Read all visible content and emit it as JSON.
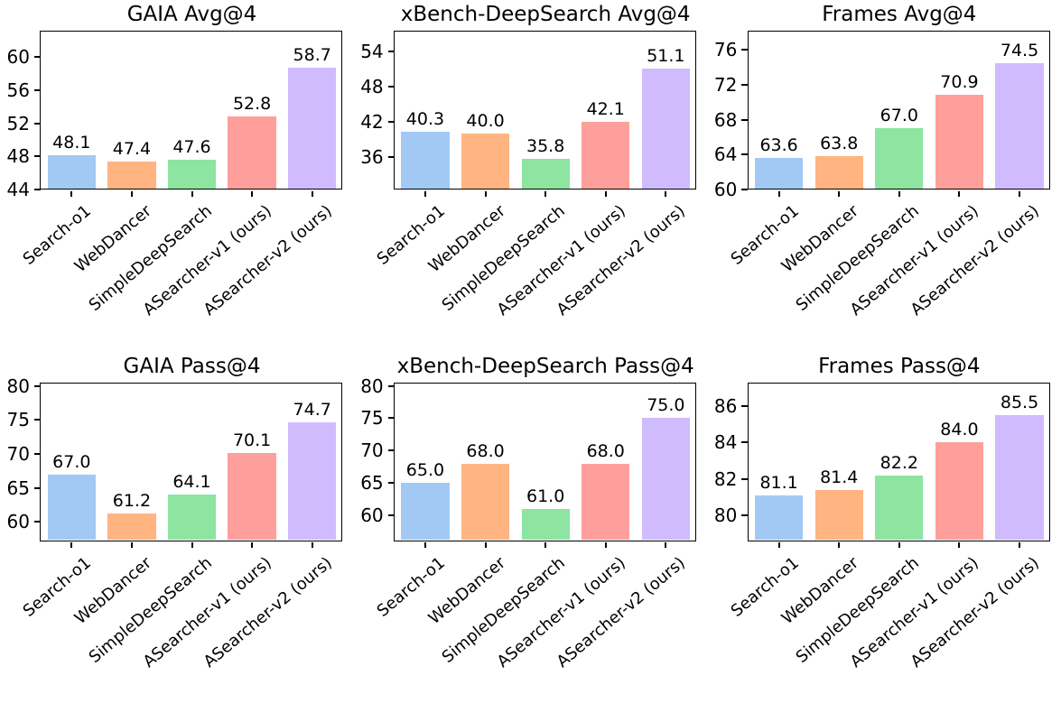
{
  "figure": {
    "background": "#ffffff",
    "axis_color": "#000000",
    "text_color": "#000000",
    "palette": [
      "#a1c9f4",
      "#ffb482",
      "#8de5a1",
      "#ff9f9b",
      "#d0bbff"
    ],
    "grid_layout": {
      "rows": 2,
      "cols": 3
    }
  },
  "chart_data": [
    {
      "type": "bar",
      "title": "GAIA Avg@4",
      "categories": [
        "Search-o1",
        "WebDancer",
        "SimpleDeepSearch",
        "ASearcher-v1 (ours)",
        "ASearcher-v2 (ours)"
      ],
      "values": [
        48.1,
        47.4,
        47.6,
        52.8,
        58.7
      ],
      "bar_labels": [
        "48.1",
        "47.4",
        "47.6",
        "52.8",
        "58.7"
      ],
      "yticks": [
        44,
        48,
        52,
        56,
        60
      ],
      "ylim": [
        44,
        63
      ],
      "xlabel": "",
      "ylabel": "",
      "grid": false,
      "legend": null
    },
    {
      "type": "bar",
      "title": "xBench-DeepSearch Avg@4",
      "categories": [
        "Search-o1",
        "WebDancer",
        "SimpleDeepSearch",
        "ASearcher-v1 (ours)",
        "ASearcher-v2 (ours)"
      ],
      "values": [
        40.3,
        40.0,
        35.8,
        42.1,
        51.1
      ],
      "bar_labels": [
        "40.3",
        "40.0",
        "35.8",
        "42.1",
        "51.1"
      ],
      "yticks": [
        36,
        42,
        48,
        54
      ],
      "ylim": [
        30.5,
        57.3
      ],
      "xlabel": "",
      "ylabel": "",
      "grid": false,
      "legend": null
    },
    {
      "type": "bar",
      "title": "Frames Avg@4",
      "categories": [
        "Search-o1",
        "WebDancer",
        "SimpleDeepSearch",
        "ASearcher-v1 (ours)",
        "ASearcher-v2 (ours)"
      ],
      "values": [
        63.6,
        63.8,
        67.0,
        70.9,
        74.5
      ],
      "bar_labels": [
        "63.6",
        "63.8",
        "67.0",
        "70.9",
        "74.5"
      ],
      "yticks": [
        60,
        64,
        68,
        72,
        76
      ],
      "ylim": [
        60,
        78
      ],
      "xlabel": "",
      "ylabel": "",
      "grid": false,
      "legend": null
    },
    {
      "type": "bar",
      "title": "GAIA Pass@4",
      "categories": [
        "Search-o1",
        "WebDancer",
        "SimpleDeepSearch",
        "ASearcher-v1 (ours)",
        "ASearcher-v2 (ours)"
      ],
      "values": [
        67.0,
        61.2,
        64.1,
        70.1,
        74.7
      ],
      "bar_labels": [
        "67.0",
        "61.2",
        "64.1",
        "70.1",
        "74.7"
      ],
      "yticks": [
        60,
        65,
        70,
        75,
        80
      ],
      "ylim": [
        57.2,
        80.3
      ],
      "xlabel": "",
      "ylabel": "",
      "grid": false,
      "legend": null
    },
    {
      "type": "bar",
      "title": "xBench-DeepSearch Pass@4",
      "categories": [
        "Search-o1",
        "WebDancer",
        "SimpleDeepSearch",
        "ASearcher-v1 (ours)",
        "ASearcher-v2 (ours)"
      ],
      "values": [
        65.0,
        68.0,
        61.0,
        68.0,
        75.0
      ],
      "bar_labels": [
        "65.0",
        "68.0",
        "61.0",
        "68.0",
        "75.0"
      ],
      "yticks": [
        60,
        65,
        70,
        75,
        80
      ],
      "ylim": [
        56.0,
        80.3
      ],
      "xlabel": "",
      "ylabel": "",
      "grid": false,
      "legend": null
    },
    {
      "type": "bar",
      "title": "Frames Pass@4",
      "categories": [
        "Search-o1",
        "WebDancer",
        "SimpleDeepSearch",
        "ASearcher-v1 (ours)",
        "ASearcher-v2 (ours)"
      ],
      "values": [
        81.1,
        81.4,
        82.2,
        84.0,
        85.5
      ],
      "bar_labels": [
        "81.1",
        "81.4",
        "82.2",
        "84.0",
        "85.5"
      ],
      "yticks": [
        80,
        82,
        84,
        86
      ],
      "ylim": [
        78.6,
        87.2
      ],
      "xlabel": "",
      "ylabel": "",
      "grid": false,
      "legend": null
    }
  ]
}
